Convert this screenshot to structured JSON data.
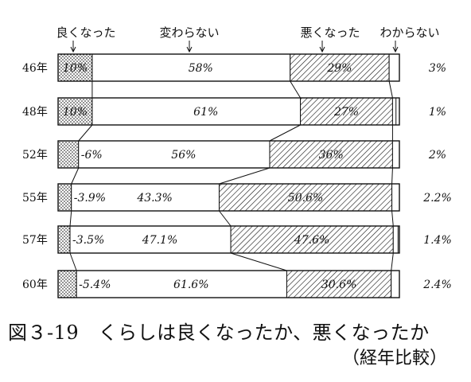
{
  "chart_data": {
    "type": "bar",
    "orientation": "horizontal-stacked-100",
    "legend_labels": [
      "良くなった",
      "変わらない",
      "悪くなった",
      "わからない"
    ],
    "categories": [
      "46年",
      "48年",
      "52年",
      "55年",
      "57年",
      "60年"
    ],
    "series": [
      {
        "name": "良くなった",
        "values": [
          10,
          10,
          6,
          3.9,
          3.5,
          5.4
        ],
        "labels": [
          "10%",
          "10%",
          "6%",
          "3.9%",
          "3.5%",
          "5.4%"
        ],
        "pattern": "dots"
      },
      {
        "name": "変わらない",
        "values": [
          58,
          61,
          56,
          43.3,
          47.1,
          61.6
        ],
        "labels": [
          "58%",
          "61%",
          "56%",
          "43.3%",
          "47.1%",
          "61.6%"
        ],
        "pattern": "none"
      },
      {
        "name": "悪くなった",
        "values": [
          29,
          27,
          36,
          50.6,
          47.6,
          30.6
        ],
        "labels": [
          "29%",
          "27%",
          "36%",
          "50.6%",
          "47.6%",
          "30.6%"
        ],
        "pattern": "hatch"
      },
      {
        "name": "わからない",
        "values": [
          3,
          1,
          2,
          2.2,
          1.4,
          2.4
        ],
        "labels": [
          "3%",
          "1%",
          "2%",
          "2.2%",
          "1.4%",
          "2.4%"
        ],
        "pattern": "none"
      }
    ],
    "title": "図３-19　くらしは良くなったか、悪くなったか",
    "subtitle": "（経年比較）",
    "xlim": [
      0,
      100
    ]
  }
}
